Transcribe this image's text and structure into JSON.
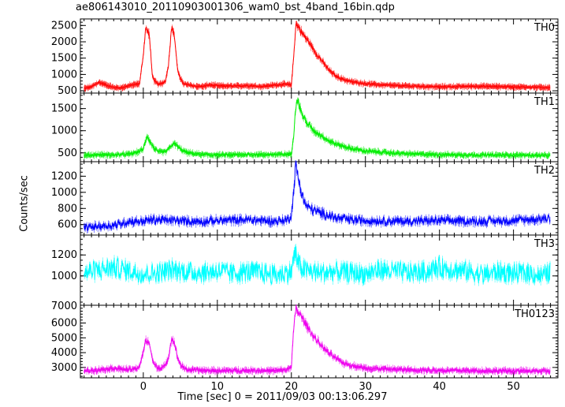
{
  "chart_data": {
    "type": "line",
    "title": "ae806143010_20110903001306_wam0_bst_4band_16bin.qdp",
    "xlabel": "Time [sec] 0 = 2011/09/03 00:13:06.297",
    "ylabel": "Counts/sec",
    "xlim": [
      -8.5,
      56
    ],
    "xticks": [
      0,
      10,
      20,
      30,
      40,
      50
    ],
    "series": [
      {
        "name": "TH0",
        "color": "#ff0000",
        "ylim": [
          430,
          2700
        ],
        "yticks": [
          500,
          1000,
          1500,
          2000,
          2500
        ],
        "x": [
          -8,
          -7,
          -6,
          -5,
          -4,
          -3,
          -2,
          -1,
          -0.5,
          0,
          0.3,
          0.8,
          1.2,
          1.5,
          2,
          2.5,
          3,
          3.4,
          3.8,
          4.2,
          4.6,
          5,
          5.5,
          6,
          7,
          8,
          9,
          10,
          12,
          14,
          16,
          18,
          19,
          20,
          20.3,
          20.6,
          21,
          21.5,
          22,
          22.5,
          23,
          24,
          25,
          26,
          27,
          28,
          30,
          32,
          35,
          40,
          45,
          50,
          55
        ],
        "values": [
          570,
          620,
          760,
          680,
          600,
          590,
          650,
          700,
          720,
          1600,
          2400,
          2250,
          1000,
          800,
          700,
          720,
          800,
          1300,
          2450,
          2200,
          1200,
          850,
          720,
          680,
          640,
          630,
          680,
          650,
          640,
          660,
          630,
          680,
          700,
          680,
          1500,
          2550,
          2450,
          2250,
          2100,
          1950,
          1750,
          1450,
          1150,
          950,
          850,
          780,
          720,
          680,
          650,
          620,
          640,
          620,
          600
        ]
      },
      {
        "name": "TH1",
        "color": "#00ee00",
        "ylim": [
          300,
          1850
        ],
        "yticks": [
          500,
          1000,
          1500
        ],
        "x": [
          -8,
          -6,
          -4,
          -2,
          -1,
          0,
          0.5,
          1,
          1.5,
          2,
          3,
          3.5,
          4,
          4.5,
          5,
          6,
          8,
          10,
          14,
          18,
          20,
          20.3,
          20.7,
          21,
          21.5,
          22,
          22.5,
          23,
          24,
          25,
          26,
          28,
          30,
          35,
          40,
          45,
          50,
          55
        ],
        "values": [
          440,
          460,
          450,
          470,
          500,
          580,
          900,
          720,
          600,
          520,
          520,
          600,
          700,
          680,
          580,
          500,
          460,
          450,
          460,
          460,
          470,
          900,
          1750,
          1600,
          1350,
          1200,
          1100,
          1000,
          900,
          780,
          700,
          600,
          540,
          480,
          460,
          450,
          450,
          440
        ]
      },
      {
        "name": "TH2",
        "color": "#0000ff",
        "ylim": [
          470,
          1380
        ],
        "yticks": [
          600,
          800,
          1000,
          1200
        ],
        "x": [
          -8,
          -6,
          -4,
          -3,
          -2,
          0,
          1,
          2,
          4,
          6,
          8,
          10,
          14,
          18,
          19.5,
          20,
          20.3,
          20.6,
          21,
          21.5,
          22,
          23,
          24,
          25,
          26,
          28,
          30,
          35,
          40,
          45,
          50,
          55
        ],
        "values": [
          560,
          580,
          590,
          610,
          640,
          640,
          660,
          660,
          650,
          640,
          640,
          650,
          660,
          640,
          660,
          720,
          1000,
          1340,
          1150,
          950,
          830,
          780,
          740,
          720,
          680,
          660,
          650,
          640,
          650,
          640,
          650,
          680
        ]
      },
      {
        "name": "TH3",
        "color": "#00ffff",
        "ylim": [
          720,
          1390
        ],
        "yticks": [
          1000,
          1200
        ],
        "x": [
          -8,
          -6,
          -4,
          -2,
          0,
          2,
          4,
          6,
          8,
          10,
          12,
          14,
          16,
          18,
          20,
          20.5,
          21,
          22,
          24,
          26,
          28,
          30,
          32,
          34,
          36,
          38,
          40,
          42,
          44,
          46,
          48,
          50,
          52,
          54,
          55
        ],
        "values": [
          1030,
          1060,
          1080,
          1050,
          1020,
          1030,
          1060,
          1040,
          1030,
          1050,
          1020,
          1040,
          1030,
          1010,
          1040,
          1230,
          1100,
          1050,
          1030,
          1040,
          1030,
          1020,
          1060,
          1040,
          1030,
          1040,
          1080,
          1060,
          1040,
          1010,
          1040,
          1020,
          1030,
          1000,
          1040
        ],
        "bottom_label": "7000"
      },
      {
        "name": "TH0123",
        "color": "#ee00ee",
        "ylim": [
          2300,
          7200
        ],
        "yticks": [
          3000,
          4000,
          5000,
          6000
        ],
        "x": [
          -8,
          -6,
          -4,
          -2,
          -1,
          -0.5,
          0,
          0.3,
          0.8,
          1.2,
          1.5,
          2,
          2.5,
          3,
          3.4,
          3.8,
          4.2,
          4.6,
          5,
          5.5,
          6,
          8,
          10,
          14,
          18,
          19.5,
          20,
          20.3,
          20.6,
          21,
          21.5,
          22,
          22.5,
          23,
          24,
          25,
          26,
          27,
          28,
          30,
          35,
          40,
          45,
          50,
          55
        ],
        "values": [
          2750,
          2850,
          2950,
          2850,
          2900,
          3100,
          4000,
          4800,
          4700,
          3600,
          3200,
          2950,
          3000,
          3100,
          3700,
          4950,
          4700,
          3700,
          3200,
          2950,
          2850,
          2800,
          2780,
          2800,
          2780,
          2850,
          3100,
          5500,
          6900,
          6700,
          6300,
          5900,
          5500,
          5100,
          4500,
          4000,
          3600,
          3300,
          3150,
          2950,
          2850,
          2800,
          2780,
          2760,
          2750
        ]
      }
    ]
  }
}
